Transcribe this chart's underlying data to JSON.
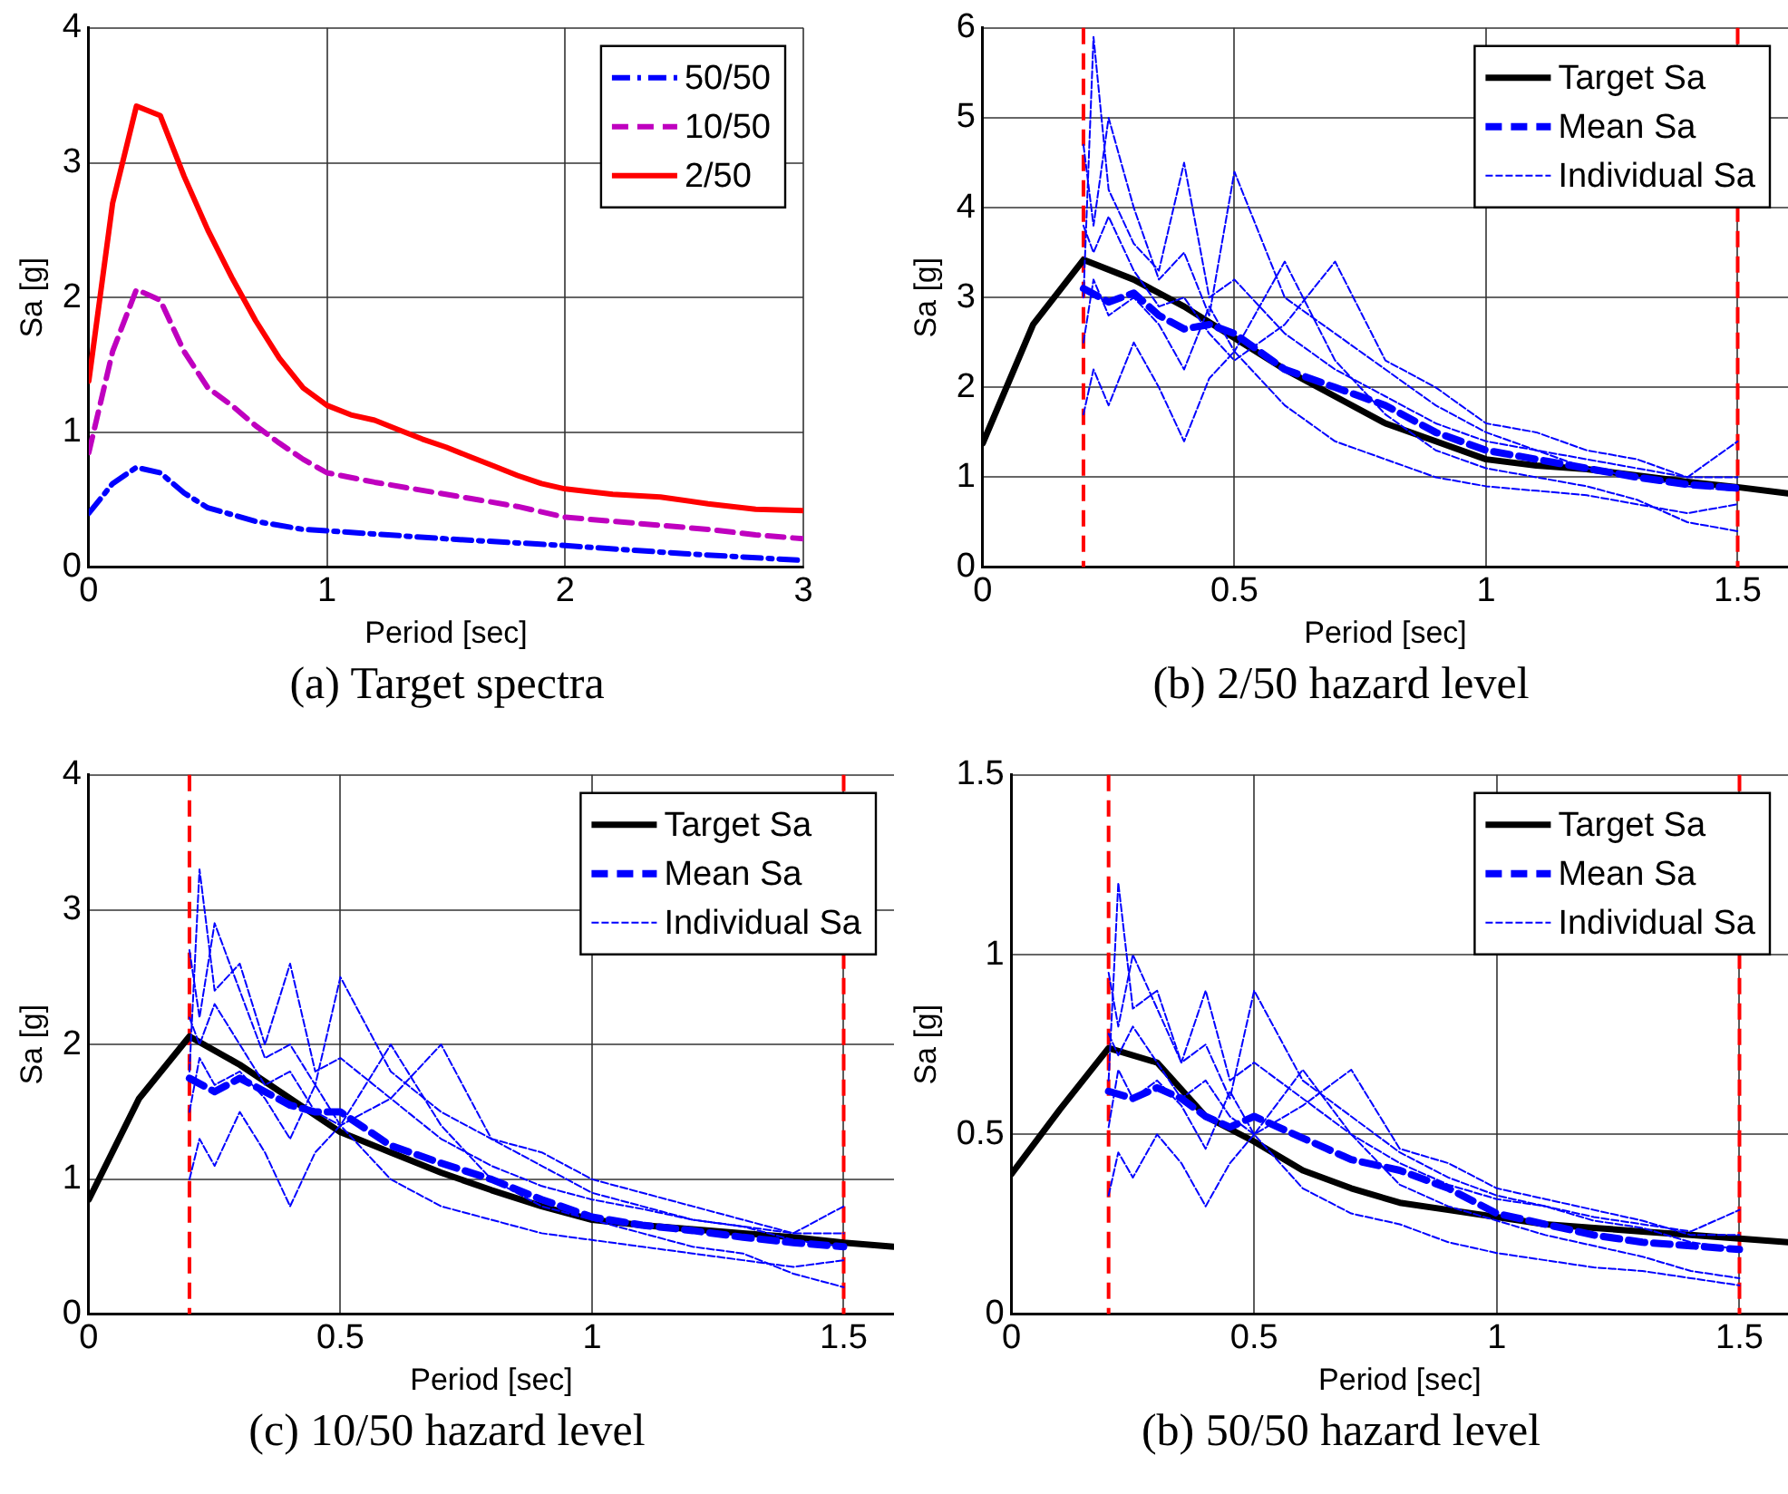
{
  "chart_data": [
    {
      "type": "line",
      "title": "(a) Target spectra",
      "xlabel": "Period [sec]",
      "ylabel": "Sa [g]",
      "xlim": [
        0,
        3
      ],
      "ylim": [
        0,
        4
      ],
      "xticks": [
        0,
        1,
        2,
        3
      ],
      "yticks": [
        0,
        1,
        2,
        3,
        4
      ],
      "grid": true,
      "legend": "top right",
      "series": [
        {
          "name": "50/50",
          "color": "#0000ff",
          "line_style": "dashdot",
          "x": [
            0,
            0.1,
            0.2,
            0.3,
            0.4,
            0.5,
            0.7,
            0.9,
            1.0,
            1.5,
            2.0,
            2.5,
            3.0
          ],
          "values": [
            0.4,
            0.62,
            0.74,
            0.7,
            0.55,
            0.44,
            0.34,
            0.28,
            0.27,
            0.21,
            0.16,
            0.1,
            0.05
          ]
        },
        {
          "name": "10/50",
          "color": "#bf00bf",
          "line_style": "dashed",
          "x": [
            0,
            0.1,
            0.2,
            0.3,
            0.4,
            0.5,
            0.6,
            0.7,
            0.8,
            0.9,
            1.0,
            1.2,
            1.4,
            1.6,
            1.8,
            2.0,
            2.2,
            2.4,
            2.6,
            2.8,
            3.0
          ],
          "values": [
            0.85,
            1.6,
            2.06,
            1.98,
            1.6,
            1.33,
            1.2,
            1.05,
            0.92,
            0.8,
            0.7,
            0.63,
            0.57,
            0.51,
            0.45,
            0.37,
            0.34,
            0.31,
            0.28,
            0.24,
            0.21
          ]
        },
        {
          "name": "2/50",
          "color": "#ff0000",
          "line_style": "solid",
          "x": [
            0,
            0.1,
            0.2,
            0.3,
            0.4,
            0.5,
            0.6,
            0.7,
            0.8,
            0.9,
            1.0,
            1.1,
            1.2,
            1.3,
            1.4,
            1.5,
            1.6,
            1.7,
            1.8,
            1.9,
            2.0,
            2.2,
            2.4,
            2.6,
            2.8,
            3.0
          ],
          "values": [
            1.38,
            2.7,
            3.42,
            3.35,
            2.9,
            2.5,
            2.15,
            1.83,
            1.55,
            1.33,
            1.2,
            1.13,
            1.09,
            1.02,
            0.95,
            0.89,
            0.82,
            0.75,
            0.68,
            0.62,
            0.58,
            0.54,
            0.52,
            0.47,
            0.43,
            0.42
          ]
        }
      ]
    },
    {
      "type": "line",
      "title": "(b) 2/50 hazard level",
      "xlabel": "Period [sec]",
      "ylabel": "Sa [g]",
      "xlim": [
        0,
        1.6
      ],
      "ylim": [
        0,
        6
      ],
      "xticks": [
        0,
        0.5,
        1,
        1.5
      ],
      "yticks": [
        0,
        1,
        2,
        3,
        4,
        5,
        6
      ],
      "grid": true,
      "legend": "top right",
      "ref_lines": [
        {
          "axis": "x",
          "value": 0.2,
          "color": "#ff0000",
          "line_style": "dashed"
        },
        {
          "axis": "x",
          "value": 1.5,
          "color": "#ff0000",
          "line_style": "dashed"
        }
      ],
      "series": [
        {
          "name": "Target Sa",
          "color": "#000000",
          "line_style": "solid",
          "x": [
            0,
            0.1,
            0.2,
            0.3,
            0.4,
            0.5,
            0.6,
            0.7,
            0.8,
            0.9,
            1.0,
            1.1,
            1.2,
            1.3,
            1.4,
            1.5,
            1.6
          ],
          "values": [
            1.38,
            2.7,
            3.42,
            3.2,
            2.9,
            2.55,
            2.2,
            1.9,
            1.6,
            1.4,
            1.2,
            1.13,
            1.09,
            1.02,
            0.95,
            0.89,
            0.82
          ]
        },
        {
          "name": "Mean Sa",
          "color": "#0000ff",
          "line_style": "dashed",
          "x": [
            0.2,
            0.25,
            0.3,
            0.35,
            0.4,
            0.45,
            0.5,
            0.6,
            0.7,
            0.8,
            0.9,
            1.0,
            1.1,
            1.2,
            1.3,
            1.4,
            1.5
          ],
          "values": [
            3.1,
            2.95,
            3.05,
            2.8,
            2.65,
            2.7,
            2.6,
            2.2,
            2.0,
            1.8,
            1.5,
            1.3,
            1.2,
            1.1,
            1.0,
            0.92,
            0.88
          ]
        },
        {
          "name": "Individual Sa",
          "color": "#0000ff",
          "line_style": "dashed",
          "x": [
            0.2,
            0.22,
            0.25,
            0.3,
            0.35,
            0.4,
            0.45,
            0.5,
            0.6,
            0.7,
            0.8,
            0.9,
            1.0,
            1.1,
            1.2,
            1.3,
            1.4,
            1.5
          ],
          "values": [
            3.0,
            5.9,
            4.2,
            3.6,
            3.3,
            4.5,
            3.0,
            3.2,
            2.6,
            2.2,
            1.9,
            1.6,
            1.4,
            1.3,
            1.2,
            1.1,
            1.0,
            1.4
          ]
        },
        {
          "color": "#0000ff",
          "line_style": "dashed",
          "x": [
            0.2,
            0.22,
            0.25,
            0.3,
            0.35,
            0.4,
            0.45,
            0.5,
            0.6,
            0.7,
            0.8,
            0.9,
            1.0,
            1.1,
            1.2,
            1.3,
            1.4,
            1.5
          ],
          "values": [
            1.7,
            2.2,
            1.8,
            2.5,
            2.0,
            1.4,
            2.1,
            2.4,
            1.8,
            1.4,
            1.2,
            1.0,
            0.9,
            0.85,
            0.8,
            0.7,
            0.6,
            0.7
          ]
        },
        {
          "color": "#0000ff",
          "line_style": "dashed",
          "x": [
            0.2,
            0.22,
            0.25,
            0.3,
            0.35,
            0.4,
            0.45,
            0.5,
            0.6,
            0.7,
            0.8,
            0.9,
            1.0,
            1.1,
            1.2,
            1.3,
            1.4,
            1.5
          ],
          "values": [
            4.7,
            3.8,
            5.0,
            4.0,
            3.2,
            3.5,
            2.8,
            4.4,
            3.0,
            2.6,
            2.2,
            1.8,
            1.5,
            1.3,
            1.1,
            1.0,
            0.9,
            0.85
          ]
        },
        {
          "color": "#0000ff",
          "line_style": "dashed",
          "x": [
            0.2,
            0.22,
            0.25,
            0.3,
            0.35,
            0.4,
            0.45,
            0.5,
            0.6,
            0.7,
            0.8,
            0.9,
            1.0,
            1.1,
            1.2,
            1.3,
            1.4,
            1.5
          ],
          "values": [
            2.5,
            3.2,
            2.8,
            3.0,
            2.7,
            2.2,
            2.9,
            2.4,
            3.4,
            2.3,
            1.7,
            1.3,
            1.1,
            1.0,
            0.9,
            0.75,
            0.5,
            0.4
          ]
        },
        {
          "color": "#0000ff",
          "line_style": "dashed",
          "x": [
            0.2,
            0.22,
            0.25,
            0.3,
            0.35,
            0.4,
            0.45,
            0.5,
            0.6,
            0.7,
            0.8,
            0.9,
            1.0,
            1.1,
            1.2,
            1.3,
            1.4,
            1.5
          ],
          "values": [
            3.8,
            3.5,
            3.9,
            3.3,
            2.9,
            3.0,
            2.6,
            2.3,
            2.7,
            3.4,
            2.3,
            2.0,
            1.6,
            1.5,
            1.3,
            1.2,
            1.0,
            1.0
          ]
        }
      ]
    },
    {
      "type": "line",
      "title": "(c) 10/50 hazard level",
      "xlabel": "Period [sec]",
      "ylabel": "Sa [g]",
      "xlim": [
        0,
        1.6
      ],
      "ylim": [
        0,
        4
      ],
      "xticks": [
        0,
        0.5,
        1,
        1.5
      ],
      "yticks": [
        0,
        1,
        2,
        3,
        4
      ],
      "grid": true,
      "legend": "top right",
      "ref_lines": [
        {
          "axis": "x",
          "value": 0.2,
          "color": "#ff0000",
          "line_style": "dashed"
        },
        {
          "axis": "x",
          "value": 1.5,
          "color": "#ff0000",
          "line_style": "dashed"
        }
      ],
      "series": [
        {
          "name": "Target Sa",
          "color": "#000000",
          "line_style": "solid",
          "x": [
            0,
            0.1,
            0.2,
            0.3,
            0.4,
            0.5,
            0.6,
            0.7,
            0.8,
            0.9,
            1.0,
            1.1,
            1.2,
            1.3,
            1.4,
            1.5,
            1.6
          ],
          "values": [
            0.85,
            1.6,
            2.06,
            1.85,
            1.6,
            1.35,
            1.2,
            1.05,
            0.92,
            0.8,
            0.7,
            0.66,
            0.63,
            0.6,
            0.57,
            0.53,
            0.5
          ]
        },
        {
          "name": "Mean Sa",
          "color": "#0000ff",
          "line_style": "dashed",
          "x": [
            0.2,
            0.25,
            0.3,
            0.35,
            0.4,
            0.45,
            0.5,
            0.6,
            0.7,
            0.8,
            0.9,
            1.0,
            1.1,
            1.2,
            1.3,
            1.4,
            1.5
          ],
          "values": [
            1.75,
            1.65,
            1.75,
            1.65,
            1.55,
            1.5,
            1.5,
            1.25,
            1.12,
            1.0,
            0.85,
            0.72,
            0.66,
            0.62,
            0.57,
            0.53,
            0.5
          ]
        },
        {
          "name": "Individual Sa",
          "color": "#0000ff",
          "line_style": "dashed",
          "x": [
            0.2,
            0.22,
            0.25,
            0.3,
            0.35,
            0.4,
            0.45,
            0.5,
            0.6,
            0.7,
            0.8,
            0.9,
            1.0,
            1.1,
            1.2,
            1.3,
            1.4,
            1.5
          ],
          "values": [
            1.8,
            3.3,
            2.4,
            2.6,
            2.0,
            2.6,
            1.8,
            1.9,
            1.6,
            1.3,
            1.1,
            0.95,
            0.85,
            0.78,
            0.7,
            0.65,
            0.6,
            0.8
          ]
        },
        {
          "color": "#0000ff",
          "line_style": "dashed",
          "x": [
            0.2,
            0.22,
            0.25,
            0.3,
            0.35,
            0.4,
            0.45,
            0.5,
            0.6,
            0.7,
            0.8,
            0.9,
            1.0,
            1.1,
            1.2,
            1.3,
            1.4,
            1.5
          ],
          "values": [
            1.0,
            1.3,
            1.1,
            1.5,
            1.2,
            0.8,
            1.2,
            1.4,
            1.0,
            0.8,
            0.7,
            0.6,
            0.55,
            0.5,
            0.45,
            0.4,
            0.35,
            0.4
          ]
        },
        {
          "color": "#0000ff",
          "line_style": "dashed",
          "x": [
            0.2,
            0.22,
            0.25,
            0.3,
            0.35,
            0.4,
            0.45,
            0.5,
            0.6,
            0.7,
            0.8,
            0.9,
            1.0,
            1.1,
            1.2,
            1.3,
            1.4,
            1.5
          ],
          "values": [
            2.7,
            2.2,
            2.9,
            2.4,
            1.9,
            2.0,
            1.7,
            2.5,
            1.8,
            1.5,
            1.3,
            1.1,
            0.9,
            0.8,
            0.7,
            0.65,
            0.55,
            0.5
          ]
        },
        {
          "color": "#0000ff",
          "line_style": "dashed",
          "x": [
            0.2,
            0.22,
            0.25,
            0.3,
            0.35,
            0.4,
            0.45,
            0.5,
            0.6,
            0.7,
            0.8,
            0.9,
            1.0,
            1.1,
            1.2,
            1.3,
            1.4,
            1.5
          ],
          "values": [
            1.5,
            1.9,
            1.7,
            1.8,
            1.6,
            1.3,
            1.7,
            1.4,
            2.0,
            1.4,
            1.0,
            0.8,
            0.7,
            0.6,
            0.5,
            0.45,
            0.3,
            0.2
          ]
        },
        {
          "color": "#0000ff",
          "line_style": "dashed",
          "x": [
            0.2,
            0.22,
            0.25,
            0.3,
            0.35,
            0.4,
            0.45,
            0.5,
            0.6,
            0.7,
            0.8,
            0.9,
            1.0,
            1.1,
            1.2,
            1.3,
            1.4,
            1.5
          ],
          "values": [
            2.2,
            2.0,
            2.3,
            2.0,
            1.7,
            1.8,
            1.5,
            1.4,
            1.6,
            2.0,
            1.3,
            1.2,
            1.0,
            0.9,
            0.8,
            0.7,
            0.6,
            0.6
          ]
        }
      ]
    },
    {
      "type": "line",
      "title": "(b) 50/50 hazard level",
      "xlabel": "Period [sec]",
      "ylabel": "Sa [g]",
      "xlim": [
        0,
        1.6
      ],
      "ylim": [
        0,
        1.5
      ],
      "xticks": [
        0,
        0.5,
        1,
        1.5
      ],
      "yticks": [
        0,
        0.5,
        1,
        1.5
      ],
      "grid": true,
      "legend": "top right",
      "ref_lines": [
        {
          "axis": "x",
          "value": 0.2,
          "color": "#ff0000",
          "line_style": "dashed"
        },
        {
          "axis": "x",
          "value": 1.5,
          "color": "#ff0000",
          "line_style": "dashed"
        }
      ],
      "series": [
        {
          "name": "Target Sa",
          "color": "#000000",
          "line_style": "solid",
          "x": [
            0,
            0.1,
            0.2,
            0.3,
            0.4,
            0.5,
            0.6,
            0.7,
            0.8,
            0.9,
            1.0,
            1.1,
            1.2,
            1.3,
            1.4,
            1.5,
            1.6
          ],
          "values": [
            0.39,
            0.57,
            0.74,
            0.7,
            0.55,
            0.48,
            0.4,
            0.35,
            0.31,
            0.29,
            0.27,
            0.25,
            0.24,
            0.23,
            0.22,
            0.21,
            0.2
          ]
        },
        {
          "name": "Mean Sa",
          "color": "#0000ff",
          "line_style": "dashed",
          "x": [
            0.2,
            0.25,
            0.3,
            0.35,
            0.4,
            0.45,
            0.5,
            0.6,
            0.7,
            0.8,
            0.9,
            1.0,
            1.1,
            1.2,
            1.3,
            1.4,
            1.5
          ],
          "values": [
            0.62,
            0.6,
            0.63,
            0.6,
            0.55,
            0.52,
            0.55,
            0.49,
            0.43,
            0.4,
            0.35,
            0.28,
            0.25,
            0.22,
            0.2,
            0.19,
            0.18
          ]
        },
        {
          "name": "Individual Sa",
          "color": "#0000ff",
          "line_style": "dashed",
          "x": [
            0.2,
            0.22,
            0.25,
            0.3,
            0.35,
            0.4,
            0.45,
            0.5,
            0.6,
            0.7,
            0.8,
            0.9,
            1.0,
            1.1,
            1.2,
            1.3,
            1.4,
            1.5
          ],
          "values": [
            0.65,
            1.2,
            0.85,
            0.9,
            0.7,
            0.9,
            0.65,
            0.7,
            0.6,
            0.5,
            0.42,
            0.36,
            0.32,
            0.3,
            0.27,
            0.25,
            0.23,
            0.29
          ]
        },
        {
          "color": "#0000ff",
          "line_style": "dashed",
          "x": [
            0.2,
            0.22,
            0.25,
            0.3,
            0.35,
            0.4,
            0.45,
            0.5,
            0.6,
            0.7,
            0.8,
            0.9,
            1.0,
            1.1,
            1.2,
            1.3,
            1.4,
            1.5
          ],
          "values": [
            0.33,
            0.45,
            0.38,
            0.5,
            0.42,
            0.3,
            0.42,
            0.5,
            0.35,
            0.28,
            0.25,
            0.2,
            0.17,
            0.15,
            0.13,
            0.12,
            0.1,
            0.08
          ]
        },
        {
          "color": "#0000ff",
          "line_style": "dashed",
          "x": [
            0.2,
            0.22,
            0.25,
            0.3,
            0.35,
            0.4,
            0.45,
            0.5,
            0.6,
            0.7,
            0.8,
            0.9,
            1.0,
            1.1,
            1.2,
            1.3,
            1.4,
            1.5
          ],
          "values": [
            0.95,
            0.8,
            1.0,
            0.85,
            0.7,
            0.75,
            0.6,
            0.9,
            0.65,
            0.55,
            0.45,
            0.38,
            0.33,
            0.3,
            0.26,
            0.24,
            0.2,
            0.18
          ]
        },
        {
          "color": "#0000ff",
          "line_style": "dashed",
          "x": [
            0.2,
            0.22,
            0.25,
            0.3,
            0.35,
            0.4,
            0.45,
            0.5,
            0.6,
            0.7,
            0.8,
            0.9,
            1.0,
            1.1,
            1.2,
            1.3,
            1.4,
            1.5
          ],
          "values": [
            0.52,
            0.68,
            0.6,
            0.65,
            0.58,
            0.46,
            0.62,
            0.5,
            0.68,
            0.5,
            0.36,
            0.3,
            0.26,
            0.22,
            0.19,
            0.16,
            0.12,
            0.1
          ]
        },
        {
          "color": "#0000ff",
          "line_style": "dashed",
          "x": [
            0.2,
            0.22,
            0.25,
            0.3,
            0.35,
            0.4,
            0.45,
            0.5,
            0.6,
            0.7,
            0.8,
            0.9,
            1.0,
            1.1,
            1.2,
            1.3,
            1.4,
            1.5
          ],
          "values": [
            0.78,
            0.72,
            0.8,
            0.7,
            0.6,
            0.65,
            0.55,
            0.5,
            0.58,
            0.68,
            0.46,
            0.42,
            0.35,
            0.32,
            0.29,
            0.26,
            0.22,
            0.22
          ]
        }
      ]
    }
  ]
}
